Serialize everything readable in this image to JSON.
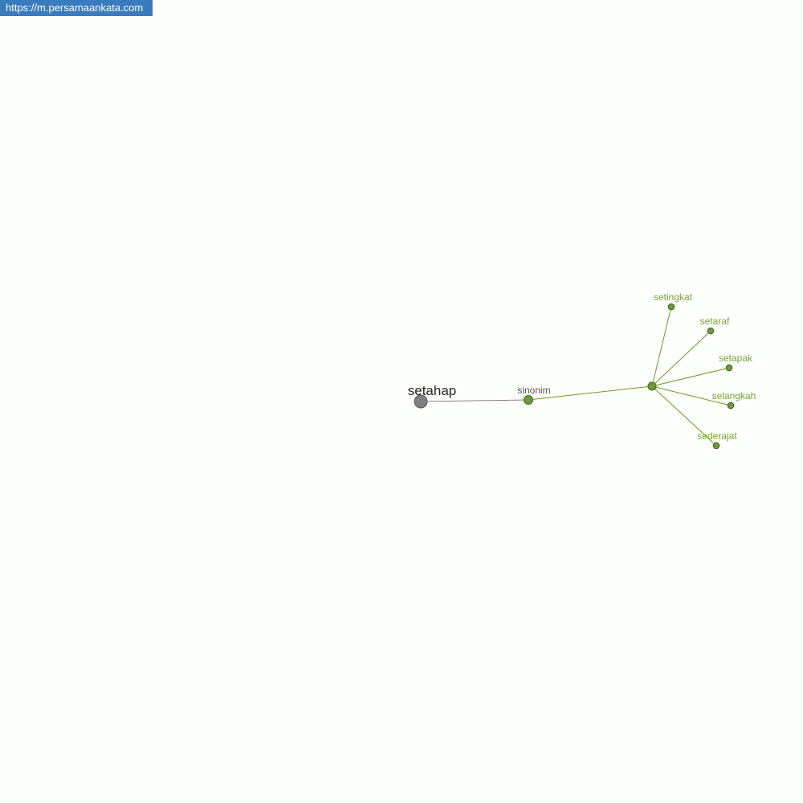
{
  "watermark": "https://m.persamaankata.com",
  "graph": {
    "root": "setahap",
    "relation": "sinonim",
    "words": [
      "setingkat",
      "setaraf",
      "setapak",
      "selangkah",
      "sederajat"
    ],
    "colors": {
      "root": "#808080",
      "node": "#6e9a3a",
      "edge": "#6e9a20",
      "label": "#7aa33a",
      "root_edge": "#808080"
    }
  }
}
